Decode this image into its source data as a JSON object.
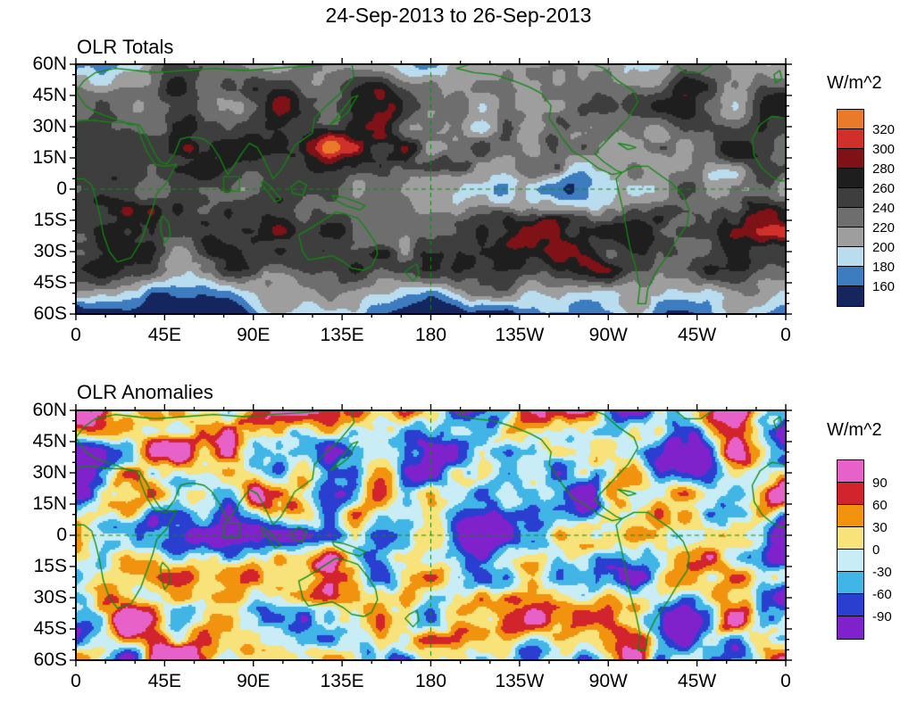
{
  "page": {
    "title": "24-Sep-2013 to 26-Sep-2013"
  },
  "chart_data": [
    {
      "type": "heatmap",
      "variant": "totals",
      "title": "OLR Totals",
      "colorbar_label": "W/m^2",
      "x_ticks": [
        "0",
        "45E",
        "90E",
        "135E",
        "180",
        "135W",
        "90W",
        "45W",
        "0"
      ],
      "y_ticks": [
        "60N",
        "45N",
        "30N",
        "15N",
        "0",
        "15S",
        "30S",
        "45S",
        "60S"
      ],
      "x_range_deg": [
        0,
        360
      ],
      "y_range_deg": [
        60,
        -60
      ],
      "colorbar": {
        "tick_labels": [
          "320",
          "300",
          "280",
          "260",
          "240",
          "220",
          "200",
          "180",
          "160"
        ],
        "cell_colors_top_to_bottom": [
          "#e87a2a",
          "#d1302a",
          "#7e1216",
          "#1e1e1e",
          "#3e3e3e",
          "#6e6e6e",
          "#9e9e9e",
          "#b9dcee",
          "#3e7cc0",
          "#15265e"
        ]
      },
      "overlays": {
        "coastline_color": "#0e8a0e",
        "dashed_meridian_deg": 180,
        "dashed_parallel_deg": 0,
        "region_box_lonlat": [
          75,
          -1,
          83,
          6
        ]
      },
      "description": "Filled-contour global map of OLR totals: grays over most oceans, dark red maxima over subtropical Africa, Australia and the Americas, blues along the ITCZ and southern high latitudes."
    },
    {
      "type": "heatmap",
      "variant": "anomaly",
      "title": "OLR Anomalies",
      "colorbar_label": "W/m^2",
      "x_ticks": [
        "0",
        "45E",
        "90E",
        "135E",
        "180",
        "135W",
        "90W",
        "45W",
        "0"
      ],
      "y_ticks": [
        "60N",
        "45N",
        "30N",
        "15N",
        "0",
        "15S",
        "30S",
        "45S",
        "60S"
      ],
      "x_range_deg": [
        0,
        360
      ],
      "y_range_deg": [
        60,
        -60
      ],
      "colorbar": {
        "tick_labels": [
          "90",
          "60",
          "30",
          "0",
          "-30",
          "-60",
          "-90"
        ],
        "cell_colors_top_to_bottom": [
          "#e661c8",
          "#d2242c",
          "#f2930f",
          "#f8e27a",
          "#c9edf7",
          "#41b6e6",
          "#2a3fd0",
          "#8022cc"
        ]
      },
      "overlays": {
        "coastline_color": "#0e8a0e",
        "dashed_meridian_deg": 180,
        "dashed_parallel_deg": 0,
        "region_box_lonlat": [
          75,
          -1,
          83,
          6
        ]
      },
      "description": "Filled-contour global map of OLR anomalies: pale yellow/cyan near zero over most of the globe with orange/red positive blobs and blue/purple negative blobs."
    }
  ]
}
